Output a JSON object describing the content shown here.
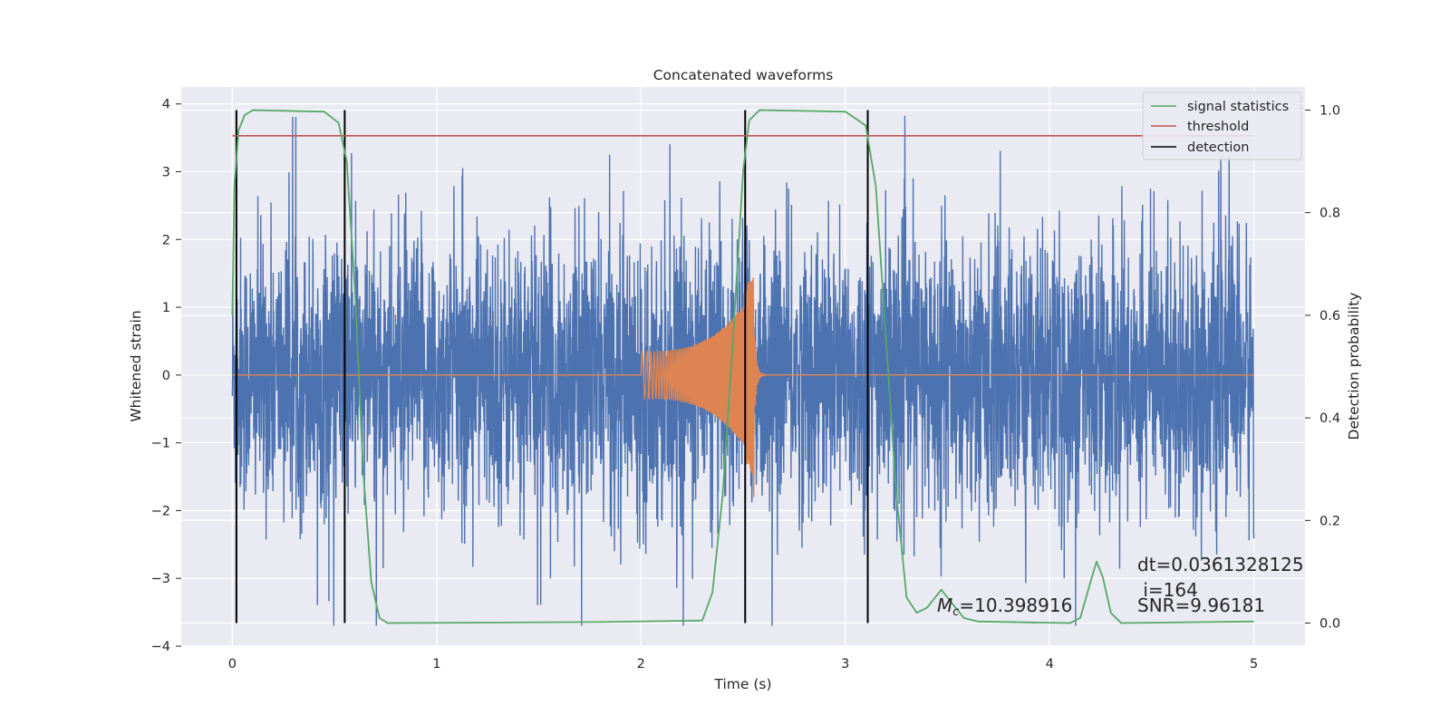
{
  "chart_data": {
    "type": "line",
    "title": "Concatenated waveforms",
    "xlabel": "Time (s)",
    "ylabel": "Whitened strain",
    "y2label": "Detection probability",
    "xlim": [
      -0.25,
      5.25
    ],
    "ylim": [
      -4,
      4.25
    ],
    "y2lim": [
      -0.045,
      1.045
    ],
    "xticks": [
      0,
      1,
      2,
      3,
      4,
      5
    ],
    "yticks": [
      -4,
      -3,
      -2,
      -1,
      0,
      1,
      2,
      3,
      4
    ],
    "y2ticks": [
      0.0,
      0.2,
      0.4,
      0.6,
      0.8,
      1.0
    ],
    "xtick_labels": [
      "0",
      "1",
      "2",
      "3",
      "4",
      "5"
    ],
    "ytick_labels": [
      "−4",
      "−3",
      "−2",
      "−1",
      "0",
      "1",
      "2",
      "3",
      "4"
    ],
    "y2tick_labels": [
      "0.0",
      "0.2",
      "0.4",
      "0.6",
      "0.8",
      "1.0"
    ],
    "grid": true,
    "legend_position": "top-right",
    "series": [
      {
        "name": "signal statistics",
        "axis": "right",
        "color": "#55a868",
        "points": [
          [
            0.0,
            0.6
          ],
          [
            0.01,
            0.85
          ],
          [
            0.03,
            0.96
          ],
          [
            0.06,
            0.99
          ],
          [
            0.1,
            1.0
          ],
          [
            0.45,
            0.997
          ],
          [
            0.52,
            0.975
          ],
          [
            0.56,
            0.9
          ],
          [
            0.6,
            0.65
          ],
          [
            0.64,
            0.3
          ],
          [
            0.68,
            0.08
          ],
          [
            0.72,
            0.01
          ],
          [
            0.76,
            0.0
          ],
          [
            1.8,
            0.002
          ],
          [
            2.3,
            0.005
          ],
          [
            2.35,
            0.06
          ],
          [
            2.4,
            0.25
          ],
          [
            2.45,
            0.55
          ],
          [
            2.5,
            0.88
          ],
          [
            2.53,
            0.98
          ],
          [
            2.58,
            1.0
          ],
          [
            3.0,
            0.997
          ],
          [
            3.1,
            0.97
          ],
          [
            3.15,
            0.85
          ],
          [
            3.2,
            0.55
          ],
          [
            3.25,
            0.25
          ],
          [
            3.3,
            0.05
          ],
          [
            3.35,
            0.02
          ],
          [
            3.4,
            0.03
          ],
          [
            3.47,
            0.065
          ],
          [
            3.52,
            0.04
          ],
          [
            3.58,
            0.01
          ],
          [
            3.65,
            0.003
          ],
          [
            4.1,
            0.0
          ],
          [
            4.15,
            0.01
          ],
          [
            4.2,
            0.08
          ],
          [
            4.23,
            0.12
          ],
          [
            4.26,
            0.09
          ],
          [
            4.3,
            0.02
          ],
          [
            4.35,
            0.0
          ],
          [
            5.0,
            0.003
          ]
        ]
      },
      {
        "name": "threshold",
        "axis": "right",
        "color": "#c44e52",
        "x": [
          0.0,
          5.0
        ],
        "y": [
          0.95,
          0.95
        ]
      },
      {
        "name": "detection",
        "axis": "right",
        "color": "#000000",
        "x": [
          0.02,
          0.55,
          2.51,
          3.11
        ]
      },
      {
        "axis": "left",
        "color": "#4c72b0",
        "x_start": 0.0,
        "x_end": 5.0,
        "description_amplitude": "noise roughly within −3.7 to 3.9, mostly within ±2.5"
      },
      {
        "axis": "left",
        "color": "#dd8452",
        "x_start": 2.0,
        "x_peak": 2.55,
        "amplitude_start": 0.35,
        "amplitude_peak": 1.25,
        "amplitude_min_peak": -1.8
      }
    ],
    "annotations": [
      {
        "text": "dt=0.0361328125",
        "x": 4.5,
        "y": -3.15
      },
      {
        "text": " i=164",
        "x": 4.5,
        "y": -3.5
      },
      {
        "text": "SNR=9.96181",
        "x": 4.5,
        "y": -3.75
      },
      {
        "text": "=10.398916",
        "mathtext": "M",
        "subscript": "c",
        "x": 3.5,
        "y": -3.75
      }
    ]
  },
  "legend": {
    "items": [
      "signal statistics",
      "threshold",
      "detection"
    ]
  }
}
